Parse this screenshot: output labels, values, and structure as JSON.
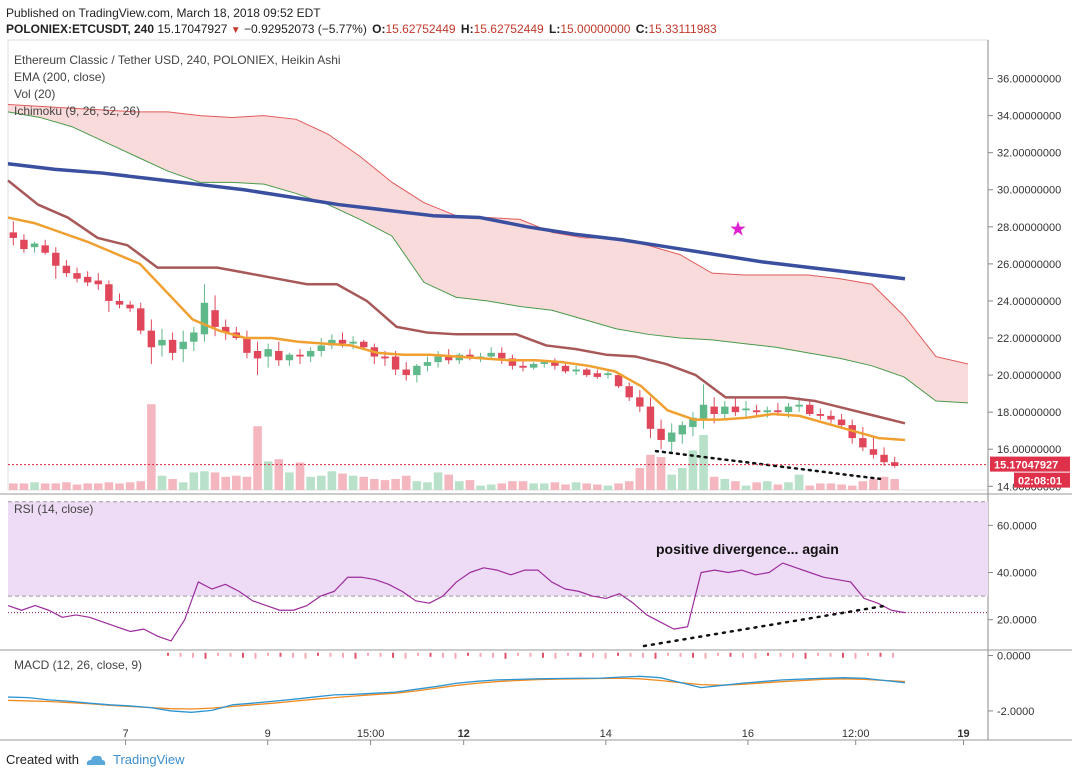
{
  "header": {
    "published": "Published on TradingView.com, March 18, 2018 09:52 EDT",
    "symbol": "POLONIEX:ETCUSDT, 240",
    "price": "15.17047927",
    "change": "−0.92952073 (−5.77%)",
    "open_label": "O:",
    "open": "15.62752449",
    "high_label": "H:",
    "high": "15.62752449",
    "low_label": "L:",
    "low": "15.00000000",
    "close_label": "C:",
    "close": "15.33111983"
  },
  "legend": {
    "title": "Ethereum Classic / Tether USD, 240, POLONIEX, Heikin Ashi",
    "ema": "EMA (200, close)",
    "vol": "Vol (20)",
    "ichimoku": "Ichimoku (9, 26, 52, 26)",
    "rsi": "RSI (14, close)",
    "macd": "MACD (12, 26, close, 9)"
  },
  "annotation": "positive divergence... again",
  "price_tag": "15.17047927",
  "time_tag": "02:08:01",
  "footer": {
    "created": "Created with",
    "brand": "TradingView"
  },
  "colors": {
    "up": "#5fb88a",
    "down": "#e0475a",
    "ema": "#3a4fa0",
    "cloud": "#f8c8c8",
    "kijun": "#a85858",
    "tenkan": "#f0a030",
    "rsi": "#9c2c9c",
    "rsi_band": "#eedcf6",
    "macd": "#2e95d3",
    "signal": "#f08a20",
    "star": "#e020d0"
  },
  "chart_data": {
    "type": "candlestick",
    "price_axis": {
      "ticks": [
        "36.00000000",
        "34.00000000",
        "32.00000000",
        "30.00000000",
        "28.00000000",
        "26.00000000",
        "24.00000000",
        "22.00000000",
        "20.00000000",
        "18.00000000",
        "16.00000000",
        "14.00000000"
      ],
      "ylim": [
        13.8,
        37.0
      ]
    },
    "rsi_axis": {
      "ticks": [
        "60.0000",
        "40.0000",
        "20.0000"
      ],
      "ylim": [
        8,
        72
      ],
      "band": [
        30,
        70
      ]
    },
    "macd_axis": {
      "ticks": [
        "0.0000",
        "-2.0000"
      ],
      "ylim": [
        -2.4,
        0.2
      ]
    },
    "time_labels": [
      [
        "7",
        0.12
      ],
      [
        "9",
        0.265
      ],
      [
        "15:00",
        0.37
      ],
      [
        "12",
        0.465
      ],
      [
        "14",
        0.61
      ],
      [
        "16",
        0.755
      ],
      [
        "12:00",
        0.865
      ],
      [
        "19",
        0.975
      ]
    ],
    "candles": [
      [
        27.7,
        28.3,
        27.0,
        27.4
      ],
      [
        27.3,
        27.6,
        26.6,
        26.8
      ],
      [
        26.9,
        27.2,
        26.6,
        27.1
      ],
      [
        27.0,
        27.3,
        26.5,
        26.6
      ],
      [
        26.6,
        26.9,
        25.2,
        25.9
      ],
      [
        25.9,
        26.2,
        25.3,
        25.5
      ],
      [
        25.5,
        25.8,
        25.0,
        25.2
      ],
      [
        25.3,
        25.6,
        24.8,
        25.0
      ],
      [
        25.1,
        25.5,
        24.6,
        24.9
      ],
      [
        24.9,
        25.1,
        23.4,
        24.0
      ],
      [
        24.0,
        24.4,
        23.6,
        23.8
      ],
      [
        23.8,
        24.0,
        23.4,
        23.6
      ],
      [
        23.6,
        23.9,
        22.2,
        22.4
      ],
      [
        22.4,
        23.0,
        20.6,
        21.5
      ],
      [
        21.6,
        22.5,
        21.0,
        21.9
      ],
      [
        21.9,
        22.3,
        20.8,
        21.2
      ],
      [
        21.4,
        22.4,
        20.7,
        21.8
      ],
      [
        21.8,
        22.6,
        21.3,
        22.3
      ],
      [
        22.2,
        24.9,
        21.8,
        23.9
      ],
      [
        23.5,
        24.3,
        22.1,
        22.6
      ],
      [
        22.6,
        23.0,
        21.9,
        22.3
      ],
      [
        22.3,
        22.6,
        21.9,
        22.0
      ],
      [
        22.0,
        22.4,
        20.9,
        21.2
      ],
      [
        21.3,
        21.8,
        20.0,
        20.9
      ],
      [
        21.0,
        21.7,
        20.4,
        21.4
      ],
      [
        21.3,
        21.8,
        20.5,
        20.8
      ],
      [
        20.8,
        21.2,
        20.5,
        21.1
      ],
      [
        21.1,
        21.4,
        20.6,
        21.0
      ],
      [
        21.0,
        21.5,
        20.7,
        21.3
      ],
      [
        21.3,
        22.0,
        21.0,
        21.6
      ],
      [
        21.6,
        22.2,
        21.4,
        21.9
      ],
      [
        21.9,
        22.3,
        21.5,
        21.7
      ],
      [
        21.7,
        22.1,
        21.4,
        21.8
      ],
      [
        21.8,
        21.9,
        21.4,
        21.5
      ],
      [
        21.5,
        21.7,
        20.6,
        21.0
      ],
      [
        21.0,
        21.3,
        20.5,
        20.9
      ],
      [
        21.0,
        21.3,
        20.0,
        20.3
      ],
      [
        20.3,
        20.7,
        19.7,
        20.0
      ],
      [
        20.0,
        20.6,
        19.6,
        20.5
      ],
      [
        20.5,
        21.0,
        20.2,
        20.7
      ],
      [
        20.7,
        21.3,
        20.4,
        21.0
      ],
      [
        21.0,
        21.4,
        20.6,
        20.8
      ],
      [
        20.8,
        21.2,
        20.6,
        21.1
      ],
      [
        21.1,
        21.4,
        20.8,
        20.9
      ],
      [
        20.9,
        21.2,
        20.7,
        21.0
      ],
      [
        21.0,
        21.5,
        20.8,
        21.2
      ],
      [
        21.2,
        21.5,
        20.6,
        20.9
      ],
      [
        20.9,
        21.1,
        20.3,
        20.5
      ],
      [
        20.5,
        20.8,
        20.2,
        20.4
      ],
      [
        20.4,
        20.7,
        20.3,
        20.6
      ],
      [
        20.6,
        20.8,
        20.4,
        20.7
      ],
      [
        20.7,
        20.9,
        20.3,
        20.5
      ],
      [
        20.5,
        20.6,
        20.1,
        20.2
      ],
      [
        20.2,
        20.5,
        20.0,
        20.3
      ],
      [
        20.3,
        20.4,
        19.9,
        20.0
      ],
      [
        20.1,
        20.3,
        19.8,
        19.9
      ],
      [
        20.0,
        20.2,
        19.8,
        20.1
      ],
      [
        20.0,
        20.1,
        19.3,
        19.4
      ],
      [
        19.4,
        19.6,
        18.6,
        18.8
      ],
      [
        18.8,
        19.2,
        18.0,
        18.3
      ],
      [
        18.3,
        18.8,
        16.6,
        17.1
      ],
      [
        17.1,
        17.6,
        16.0,
        16.5
      ],
      [
        16.4,
        17.4,
        15.8,
        16.9
      ],
      [
        16.8,
        17.5,
        16.3,
        17.3
      ],
      [
        17.2,
        18.0,
        16.7,
        17.7
      ],
      [
        17.6,
        19.5,
        17.1,
        18.4
      ],
      [
        18.3,
        18.8,
        17.4,
        17.9
      ],
      [
        17.9,
        18.6,
        17.6,
        18.3
      ],
      [
        18.3,
        18.8,
        17.8,
        18.0
      ],
      [
        18.1,
        18.6,
        17.7,
        18.2
      ],
      [
        18.1,
        18.4,
        17.8,
        18.0
      ],
      [
        18.0,
        18.3,
        17.7,
        18.1
      ],
      [
        18.1,
        18.5,
        17.8,
        18.0
      ],
      [
        18.0,
        18.5,
        17.7,
        18.3
      ],
      [
        18.3,
        18.8,
        18.0,
        18.4
      ],
      [
        18.4,
        18.6,
        17.8,
        17.9
      ],
      [
        17.9,
        18.2,
        17.6,
        17.8
      ],
      [
        17.8,
        18.1,
        17.4,
        17.6
      ],
      [
        17.6,
        17.9,
        17.1,
        17.3
      ],
      [
        17.3,
        17.6,
        16.3,
        16.6
      ],
      [
        16.6,
        17.2,
        15.9,
        16.1
      ],
      [
        16.0,
        16.7,
        15.5,
        15.7
      ],
      [
        15.7,
        16.1,
        15.1,
        15.3
      ],
      [
        15.3,
        15.6,
        15.0,
        15.1
      ]
    ],
    "volume": [
      0.06,
      0.06,
      0.07,
      0.06,
      0.06,
      0.07,
      0.05,
      0.06,
      0.06,
      0.07,
      0.06,
      0.07,
      0.08,
      0.78,
      0.13,
      0.1,
      0.07,
      0.16,
      0.17,
      0.16,
      0.12,
      0.13,
      0.12,
      0.58,
      0.26,
      0.28,
      0.16,
      0.25,
      0.12,
      0.13,
      0.17,
      0.15,
      0.13,
      0.12,
      0.1,
      0.09,
      0.1,
      0.13,
      0.08,
      0.07,
      0.16,
      0.14,
      0.08,
      0.09,
      0.04,
      0.05,
      0.06,
      0.08,
      0.08,
      0.06,
      0.06,
      0.07,
      0.05,
      0.07,
      0.06,
      0.05,
      0.04,
      0.06,
      0.08,
      0.2,
      0.32,
      0.3,
      0.14,
      0.2,
      0.36,
      0.5,
      0.12,
      0.1,
      0.08,
      0.04,
      0.07,
      0.08,
      0.05,
      0.07,
      0.14,
      0.04,
      0.06,
      0.06,
      0.05,
      0.04,
      0.08,
      0.1,
      0.12,
      0.1
    ],
    "ema": [
      31.4,
      31.1,
      30.9,
      30.6,
      30.3,
      30.0,
      29.6,
      29.2,
      28.9,
      28.6,
      28.5,
      28.0,
      27.6,
      27.3,
      26.9,
      26.5,
      26.1,
      25.8,
      25.5,
      25.2
    ],
    "tenkan": [
      28.5,
      28.2,
      27.7,
      27.2,
      26.6,
      26.0,
      24.5,
      23.0,
      22.4,
      22.0,
      22.0,
      21.8,
      21.7,
      21.6,
      21.2,
      21.1,
      21.1,
      21.0,
      20.9,
      20.8,
      20.8,
      20.7,
      20.5,
      20.2,
      19.4,
      18.1,
      17.6,
      17.6,
      17.7,
      17.9,
      17.8,
      17.4,
      17.0,
      16.6,
      16.5
    ],
    "kijun": [
      30.5,
      29.2,
      28.5,
      27.4,
      27.0,
      25.8,
      25.8,
      25.8,
      25.5,
      25.2,
      24.9,
      24.9,
      24.0,
      22.6,
      22.3,
      22.2,
      22.2,
      22.2,
      21.6,
      21.4,
      21.1,
      21.0,
      20.6,
      20.0,
      18.8,
      18.8,
      18.8,
      18.6,
      18.2,
      17.8,
      17.4
    ],
    "rsi": [
      26,
      24,
      26,
      24,
      21,
      22,
      21,
      19,
      17,
      15,
      16,
      13,
      11,
      20,
      36,
      33,
      35,
      32,
      28,
      26,
      24,
      24,
      26,
      30,
      32,
      38,
      38,
      37,
      35,
      32,
      28,
      27,
      30,
      36,
      40,
      42,
      41,
      39,
      41,
      41,
      36,
      33,
      32,
      30,
      29,
      31,
      27,
      22,
      19,
      16,
      17,
      40,
      41,
      40,
      41,
      39,
      40,
      44,
      42,
      40,
      38,
      37,
      36,
      29,
      27,
      24,
      23
    ],
    "macd": [
      -1.5,
      -1.52,
      -1.6,
      -1.65,
      -1.72,
      -1.78,
      -1.82,
      -1.88,
      -2.0,
      -2.05,
      -1.98,
      -1.78,
      -1.72,
      -1.65,
      -1.58,
      -1.5,
      -1.42,
      -1.4,
      -1.36,
      -1.32,
      -1.22,
      -1.12,
      -1.0,
      -0.93,
      -0.88,
      -0.86,
      -0.84,
      -0.83,
      -0.82,
      -0.82,
      -0.78,
      -0.75,
      -0.8,
      -0.98,
      -1.16,
      -1.08,
      -1.0,
      -0.94,
      -0.88,
      -0.85,
      -0.82,
      -0.8,
      -0.82,
      -0.9,
      -0.98
    ],
    "signal": [
      -1.62,
      -1.64,
      -1.66,
      -1.7,
      -1.74,
      -1.8,
      -1.84,
      -1.88,
      -1.92,
      -1.93,
      -1.9,
      -1.84,
      -1.78,
      -1.72,
      -1.65,
      -1.58,
      -1.52,
      -1.46,
      -1.41,
      -1.36,
      -1.28,
      -1.18,
      -1.08,
      -1.0,
      -0.94,
      -0.9,
      -0.87,
      -0.85,
      -0.84,
      -0.83,
      -0.82,
      -0.84,
      -0.9,
      -0.98,
      -1.05,
      -1.07,
      -1.04,
      -0.99,
      -0.94,
      -0.9,
      -0.86,
      -0.84,
      -0.86,
      -0.9,
      -0.94
    ]
  }
}
